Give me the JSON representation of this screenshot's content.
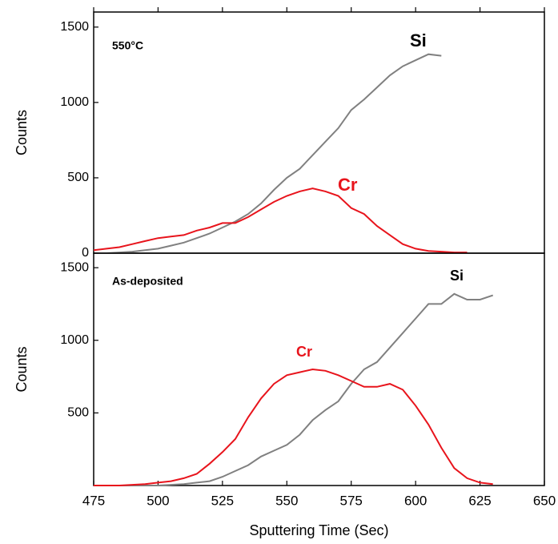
{
  "chart_data": [
    {
      "type": "line",
      "annotation": "550°C",
      "ylabel": "Counts",
      "xlim": [
        475,
        650
      ],
      "ylim": [
        0,
        1600
      ],
      "yticks": [
        0,
        500,
        1000,
        1500
      ],
      "series": [
        {
          "name": "Si",
          "color": "#808080",
          "x": [
            480,
            485,
            490,
            495,
            500,
            505,
            510,
            515,
            520,
            525,
            530,
            535,
            540,
            545,
            550,
            555,
            560,
            565,
            570,
            575,
            580,
            585,
            590,
            595,
            600,
            605,
            610
          ],
          "values": [
            0,
            5,
            10,
            20,
            30,
            50,
            70,
            100,
            130,
            170,
            210,
            260,
            330,
            420,
            500,
            560,
            650,
            740,
            830,
            950,
            1020,
            1100,
            1180,
            1240,
            1280,
            1320,
            1310
          ]
        },
        {
          "name": "Cr",
          "color": "#e8141c",
          "x": [
            475,
            480,
            485,
            490,
            495,
            500,
            505,
            510,
            515,
            520,
            525,
            530,
            535,
            540,
            545,
            550,
            555,
            560,
            565,
            570,
            575,
            580,
            585,
            590,
            595,
            600,
            605,
            610,
            615,
            620
          ],
          "values": [
            20,
            30,
            40,
            60,
            80,
            100,
            110,
            120,
            150,
            170,
            200,
            200,
            240,
            290,
            340,
            380,
            410,
            430,
            410,
            380,
            300,
            260,
            180,
            120,
            60,
            30,
            15,
            10,
            5,
            5
          ]
        }
      ]
    },
    {
      "type": "line",
      "annotation": "As-deposited",
      "ylabel": "Counts",
      "xlabel": "Sputtering Time (Sec)",
      "xlim": [
        475,
        650
      ],
      "xticks": [
        475,
        500,
        525,
        550,
        575,
        600,
        625,
        650
      ],
      "ylim": [
        0,
        1600
      ],
      "yticks": [
        500,
        1000,
        1500
      ],
      "series": [
        {
          "name": "Si",
          "color": "#808080",
          "x": [
            475,
            500,
            505,
            510,
            515,
            520,
            525,
            530,
            535,
            540,
            545,
            550,
            555,
            560,
            565,
            570,
            575,
            580,
            585,
            590,
            595,
            600,
            605,
            610,
            615,
            620,
            625,
            630
          ],
          "values": [
            0,
            0,
            5,
            10,
            20,
            30,
            60,
            100,
            140,
            200,
            240,
            280,
            350,
            450,
            520,
            580,
            700,
            800,
            850,
            950,
            1050,
            1150,
            1250,
            1250,
            1320,
            1280,
            1280,
            1310
          ]
        },
        {
          "name": "Cr",
          "color": "#e8141c",
          "x": [
            475,
            480,
            485,
            490,
            495,
            500,
            505,
            510,
            515,
            520,
            525,
            530,
            535,
            540,
            545,
            550,
            555,
            560,
            565,
            570,
            575,
            580,
            585,
            590,
            595,
            600,
            605,
            610,
            615,
            620,
            625,
            630
          ],
          "values": [
            0,
            0,
            0,
            5,
            10,
            20,
            30,
            50,
            80,
            150,
            230,
            320,
            470,
            600,
            700,
            760,
            780,
            800,
            790,
            760,
            720,
            680,
            680,
            700,
            660,
            550,
            420,
            260,
            120,
            50,
            20,
            10
          ]
        }
      ]
    }
  ]
}
